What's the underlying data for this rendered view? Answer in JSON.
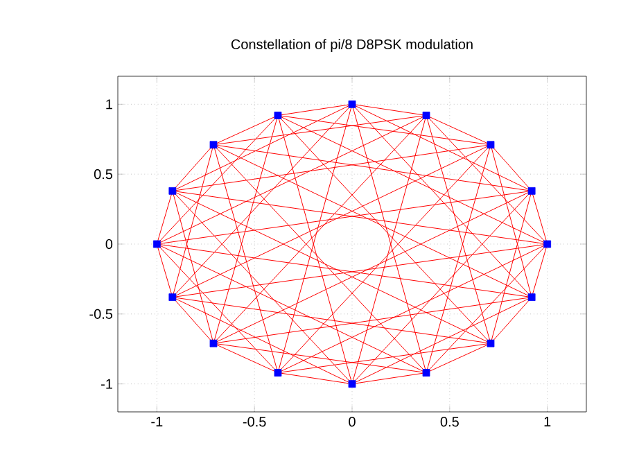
{
  "chart_data": {
    "type": "line",
    "title": "Constellation of pi/8 D8PSK modulation",
    "xlim": [
      -1.2,
      1.2
    ],
    "ylim": [
      -1.2,
      1.2
    ],
    "xticks": [
      -1,
      -0.5,
      0,
      0.5,
      1
    ],
    "yticks": [
      -1,
      -0.5,
      0,
      0.5,
      1
    ],
    "grid": true,
    "series": [
      {
        "color": "#ff0000",
        "x": [
          1,
          0.92,
          0.71,
          0.38,
          0,
          -0.38,
          -0.71,
          -0.92,
          -1,
          -0.92,
          -0.71,
          -0.38,
          0,
          0.38,
          0.71,
          0.92
        ],
        "values": [
          0,
          0.38,
          0.71,
          0.92,
          1,
          0.92,
          0.71,
          0.38,
          0,
          -0.38,
          -0.71,
          -0.92,
          -1,
          -0.92,
          -0.71,
          -0.38
        ]
      },
      {
        "color": "#ff0000",
        "x": [
          1,
          -0.38,
          0.71,
          -0.92,
          0,
          -0.92,
          -0.71,
          -0.38,
          -1,
          0.38,
          -0.71,
          0.92,
          0,
          0.92,
          0.71,
          0.38
        ],
        "values": [
          0,
          0.92,
          0.71,
          0.38,
          1,
          -0.38,
          0.71,
          -0.92,
          0,
          -0.92,
          -0.71,
          -0.38,
          -1,
          0.38,
          -0.71,
          0.92
        ]
      },
      {
        "color": "#ff0000",
        "x": [
          1,
          -0.92,
          0.71,
          -0.38,
          0,
          0.38,
          -0.71,
          0.92,
          -1,
          0.92,
          -0.71,
          0.38,
          0,
          -0.38,
          0.71,
          -0.92
        ],
        "values": [
          0,
          -0.38,
          0.71,
          -0.92,
          1,
          -0.92,
          0.71,
          -0.38,
          0,
          0.38,
          -0.71,
          0.92,
          -1,
          0.92,
          -0.71,
          0.38
        ]
      },
      {
        "color": "#ff0000",
        "x": [
          1,
          0.38,
          0.71,
          0.92,
          0,
          0.92,
          -0.71,
          0.38,
          -1,
          -0.38,
          -0.71,
          -0.92,
          0,
          -0.92,
          0.71,
          -0.38
        ],
        "values": [
          0,
          -0.92,
          0.71,
          -0.38,
          1,
          0.38,
          0.71,
          0.92,
          0,
          0.92,
          -0.71,
          0.38,
          -1,
          -0.38,
          -0.71,
          -0.92
        ]
      },
      {
        "color": "#ff0000",
        "x": [
          0.92,
          1,
          0.38
        ],
        "values": [
          -0.38,
          0,
          0.92
        ]
      },
      {
        "color": "#ff0000",
        "x": [
          -0.92,
          1,
          -0.38
        ],
        "values": [
          0.38,
          0,
          -0.92
        ]
      },
      {
        "type": "scatter",
        "color": "#0000ff",
        "marker": "square",
        "x": [
          1,
          0.92,
          0.71,
          0.38,
          0,
          -0.38,
          -0.71,
          -0.92,
          -1,
          -0.92,
          -0.71,
          -0.38,
          0,
          0.38,
          0.71,
          0.92
        ],
        "values": [
          0,
          0.38,
          0.71,
          0.92,
          1,
          0.92,
          0.71,
          0.38,
          0,
          -0.38,
          -0.71,
          -0.92,
          -1,
          -0.92,
          -0.71,
          -0.38
        ]
      }
    ]
  }
}
